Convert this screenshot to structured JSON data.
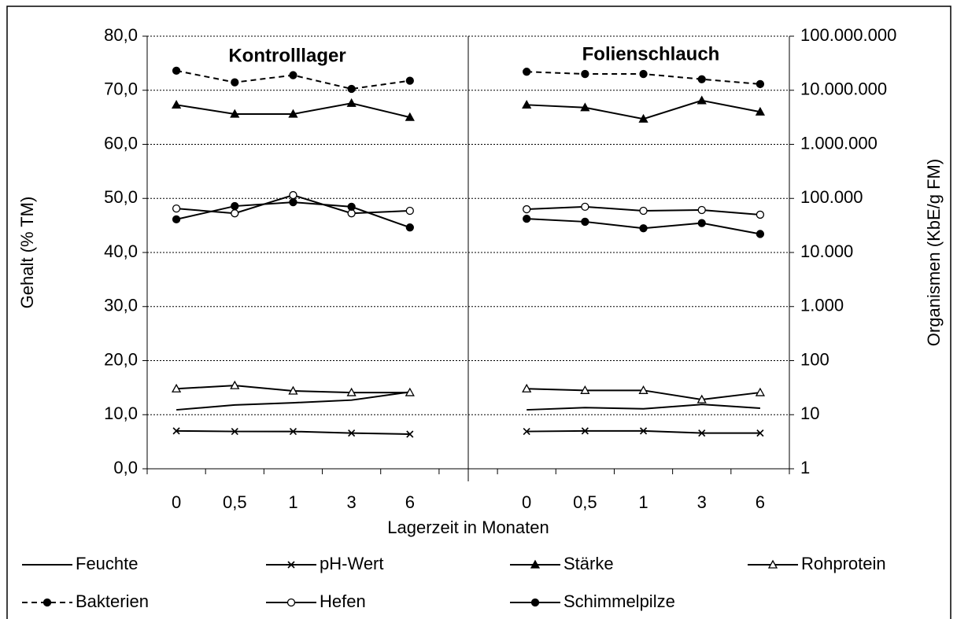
{
  "chart_data": {
    "type": "line",
    "annotations": [
      "Kontrolllager",
      "Folienschlauch"
    ],
    "x_label": "Lagerzeit in Monaten",
    "y_label": "Gehalt (% TM)",
    "y2_label": "Organismen (KbE/g FM)",
    "categories": [
      "0",
      "0,5",
      "1",
      "3",
      "6",
      null,
      "0",
      "0,5",
      "1",
      "3",
      "6"
    ],
    "ylim": [
      0,
      80
    ],
    "yticks": [
      {
        "value": 0,
        "label": "0,0"
      },
      {
        "value": 10,
        "label": "10,0"
      },
      {
        "value": 20,
        "label": "20,0"
      },
      {
        "value": 30,
        "label": "30,0"
      },
      {
        "value": 40,
        "label": "40,0"
      },
      {
        "value": 50,
        "label": "50,0"
      },
      {
        "value": 60,
        "label": "60,0"
      },
      {
        "value": 70,
        "label": "70,0"
      },
      {
        "value": 80,
        "label": "80,0"
      }
    ],
    "y2lim": [
      1,
      100000000
    ],
    "y2log": true,
    "y2ticks": [
      1,
      10,
      100,
      {
        "value": 1000,
        "label": "1.000"
      },
      {
        "value": 10000,
        "label": "10.000"
      },
      {
        "value": 100000,
        "label": "100.000"
      },
      {
        "value": 1000000,
        "label": "1.000.000"
      },
      {
        "value": 10000000,
        "label": "10.000.000"
      },
      {
        "value": 100000000,
        "label": "100.000.000"
      }
    ],
    "grid": true,
    "legend": "bottom",
    "series": [
      {
        "name": "Feuchte",
        "color": "#000000",
        "marker": "none",
        "dash": false,
        "values": [
          10.9,
          11.8,
          12.2,
          12.7,
          14.2,
          null,
          10.9,
          11.3,
          11.1,
          11.9,
          11.2
        ]
      },
      {
        "name": "pH-Wert",
        "color": "#000000",
        "marker": "x",
        "dash": false,
        "values": [
          7.0,
          6.9,
          6.9,
          6.6,
          6.4,
          null,
          6.9,
          7.0,
          7.0,
          6.6,
          6.6
        ]
      },
      {
        "name": "Stärke",
        "color": "#000000",
        "marker": "triangle-filled",
        "dash": false,
        "values": [
          67.3,
          65.6,
          65.6,
          67.6,
          65.0,
          null,
          67.3,
          66.8,
          64.7,
          68.1,
          66.0
        ]
      },
      {
        "name": "Rohprotein",
        "color": "#000000",
        "marker": "triangle-open",
        "dash": false,
        "values": [
          14.8,
          15.4,
          14.4,
          14.1,
          14.1,
          null,
          14.8,
          14.5,
          14.5,
          12.8,
          14.1
        ]
      },
      {
        "name": "Bakterien",
        "color": "#000000",
        "marker": "circle-filled",
        "dash": true,
        "axis": "y2",
        "values": [
          23000000,
          14000000,
          19000000,
          10600000,
          15000000,
          null,
          22000000,
          20000000,
          20000000,
          16000000,
          13000000
        ]
      },
      {
        "name": "Hefen",
        "color": "#000000",
        "marker": "circle-open",
        "dash": false,
        "axis": "y2",
        "values": [
          65000,
          53000,
          115000,
          53000,
          59000,
          null,
          63000,
          70000,
          59000,
          61000,
          50000
        ]
      },
      {
        "name": "Schimmelpilze",
        "color": "#000000",
        "marker": "circle-filled",
        "dash": false,
        "axis": "y2",
        "values": [
          41000,
          72000,
          85000,
          70000,
          29000,
          null,
          42000,
          37000,
          28000,
          35000,
          22000
        ]
      }
    ]
  }
}
